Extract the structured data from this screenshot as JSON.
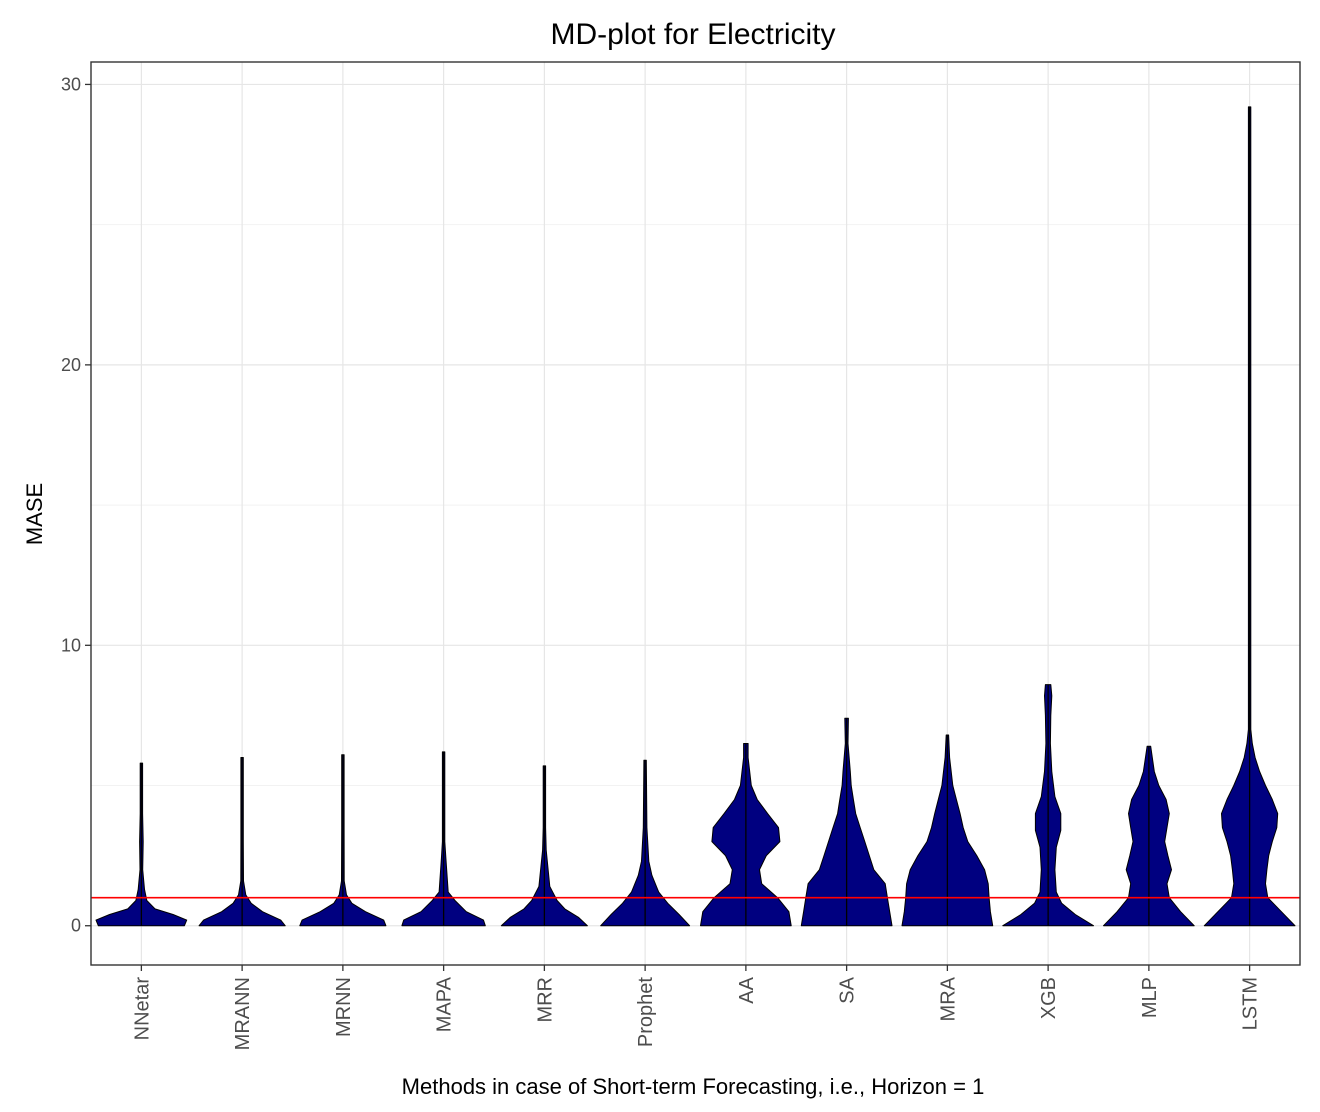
{
  "chart_data": {
    "type": "violin",
    "title": "MD-plot for Electricity",
    "xlabel": "Methods in case of Short-term Forecasting, i.e., Horizon = 1",
    "ylabel": "MASE",
    "ylim": [
      -1.4,
      30.8
    ],
    "yticks": [
      0,
      10,
      20,
      30
    ],
    "reference_line": {
      "y": 1,
      "color": "#ff0000"
    },
    "fill_color": "#000080",
    "grid": true,
    "categories": [
      "NNetar",
      "MRANN",
      "MRNN",
      "MAPA",
      "MRR",
      "Prophet",
      "AA",
      "SA",
      "MRA",
      "XGB",
      "MLP",
      "LSTM"
    ],
    "series": [
      {
        "name": "NNetar",
        "max": 5.8,
        "profile": [
          [
            0,
            0.95
          ],
          [
            0.2,
            1.0
          ],
          [
            0.4,
            0.7
          ],
          [
            0.6,
            0.3
          ],
          [
            0.9,
            0.12
          ],
          [
            1.3,
            0.07
          ],
          [
            2,
            0.03
          ],
          [
            3,
            0.04
          ],
          [
            4,
            0.01
          ],
          [
            5.8,
            0.01
          ]
        ]
      },
      {
        "name": "MRANN",
        "max": 6.0,
        "profile": [
          [
            0,
            0.95
          ],
          [
            0.2,
            0.85
          ],
          [
            0.5,
            0.45
          ],
          [
            0.8,
            0.2
          ],
          [
            1.1,
            0.08
          ],
          [
            1.6,
            0.03
          ],
          [
            3,
            0.02
          ],
          [
            5,
            0.02
          ],
          [
            6,
            0.01
          ]
        ]
      },
      {
        "name": "MRNN",
        "max": 6.1,
        "profile": [
          [
            0,
            0.95
          ],
          [
            0.2,
            0.9
          ],
          [
            0.5,
            0.5
          ],
          [
            0.8,
            0.2
          ],
          [
            1.1,
            0.08
          ],
          [
            1.6,
            0.03
          ],
          [
            3.5,
            0.02
          ],
          [
            6.1,
            0.01
          ]
        ]
      },
      {
        "name": "MAPA",
        "max": 6.2,
        "profile": [
          [
            0,
            0.92
          ],
          [
            0.2,
            0.88
          ],
          [
            0.5,
            0.5
          ],
          [
            0.9,
            0.25
          ],
          [
            1.2,
            0.1
          ],
          [
            2.4,
            0.05
          ],
          [
            3,
            0.02
          ],
          [
            6.2,
            0.01
          ]
        ]
      },
      {
        "name": "MRR",
        "max": 5.7,
        "profile": [
          [
            0,
            0.95
          ],
          [
            0.3,
            0.75
          ],
          [
            0.6,
            0.45
          ],
          [
            0.9,
            0.28
          ],
          [
            1.4,
            0.12
          ],
          [
            2.7,
            0.04
          ],
          [
            3.5,
            0.02
          ],
          [
            5.7,
            0.01
          ]
        ]
      },
      {
        "name": "Prophet",
        "max": 5.9,
        "profile": [
          [
            0,
            0.98
          ],
          [
            0.4,
            0.75
          ],
          [
            0.8,
            0.5
          ],
          [
            1.2,
            0.3
          ],
          [
            1.8,
            0.15
          ],
          [
            2.3,
            0.08
          ],
          [
            3.5,
            0.04
          ],
          [
            5.9,
            0.02
          ]
        ]
      },
      {
        "name": "AA",
        "max": 6.5,
        "profile": [
          [
            0,
            1.0
          ],
          [
            0.5,
            0.95
          ],
          [
            1.0,
            0.7
          ],
          [
            1.5,
            0.35
          ],
          [
            2.0,
            0.3
          ],
          [
            2.5,
            0.45
          ],
          [
            3.0,
            0.75
          ],
          [
            3.5,
            0.72
          ],
          [
            4.0,
            0.48
          ],
          [
            4.5,
            0.25
          ],
          [
            5.0,
            0.12
          ],
          [
            6.0,
            0.05
          ],
          [
            6.5,
            0.05
          ]
        ]
      },
      {
        "name": "SA",
        "max": 7.4,
        "profile": [
          [
            0,
            1.0
          ],
          [
            0.5,
            0.95
          ],
          [
            1.0,
            0.9
          ],
          [
            1.5,
            0.85
          ],
          [
            2.0,
            0.6
          ],
          [
            2.5,
            0.5
          ],
          [
            3.0,
            0.4
          ],
          [
            3.5,
            0.3
          ],
          [
            4.0,
            0.2
          ],
          [
            4.5,
            0.15
          ],
          [
            5.0,
            0.1
          ],
          [
            5.5,
            0.08
          ],
          [
            6.5,
            0.03
          ],
          [
            7.4,
            0.04
          ]
        ]
      },
      {
        "name": "MRA",
        "max": 6.8,
        "profile": [
          [
            0,
            1.0
          ],
          [
            0.5,
            0.95
          ],
          [
            1.0,
            0.92
          ],
          [
            1.5,
            0.9
          ],
          [
            2.0,
            0.82
          ],
          [
            2.5,
            0.65
          ],
          [
            3.0,
            0.45
          ],
          [
            3.5,
            0.35
          ],
          [
            4.0,
            0.28
          ],
          [
            4.5,
            0.2
          ],
          [
            5.0,
            0.12
          ],
          [
            6.0,
            0.05
          ],
          [
            6.8,
            0.02
          ]
        ]
      },
      {
        "name": "XGB",
        "max": 8.6,
        "profile": [
          [
            0,
            1.0
          ],
          [
            0.4,
            0.6
          ],
          [
            0.8,
            0.3
          ],
          [
            1.2,
            0.18
          ],
          [
            2.0,
            0.15
          ],
          [
            2.8,
            0.18
          ],
          [
            3.4,
            0.28
          ],
          [
            4.0,
            0.28
          ],
          [
            4.6,
            0.15
          ],
          [
            5.5,
            0.08
          ],
          [
            6.5,
            0.05
          ],
          [
            7.5,
            0.06
          ],
          [
            8.2,
            0.08
          ],
          [
            8.6,
            0.06
          ]
        ]
      },
      {
        "name": "MLP",
        "max": 6.4,
        "profile": [
          [
            0,
            1.0
          ],
          [
            0.5,
            0.7
          ],
          [
            1.0,
            0.45
          ],
          [
            1.5,
            0.4
          ],
          [
            2.0,
            0.5
          ],
          [
            2.5,
            0.42
          ],
          [
            3.0,
            0.35
          ],
          [
            3.5,
            0.4
          ],
          [
            4.0,
            0.45
          ],
          [
            4.5,
            0.38
          ],
          [
            5.0,
            0.22
          ],
          [
            5.5,
            0.12
          ],
          [
            6.4,
            0.04
          ]
        ]
      },
      {
        "name": "LSTM",
        "max": 29.2,
        "profile": [
          [
            0,
            1.0
          ],
          [
            0.5,
            0.7
          ],
          [
            1.0,
            0.4
          ],
          [
            1.5,
            0.35
          ],
          [
            2.0,
            0.38
          ],
          [
            2.5,
            0.42
          ],
          [
            3.0,
            0.5
          ],
          [
            3.5,
            0.6
          ],
          [
            4.0,
            0.62
          ],
          [
            4.5,
            0.5
          ],
          [
            5.0,
            0.35
          ],
          [
            5.5,
            0.22
          ],
          [
            6.0,
            0.12
          ],
          [
            6.5,
            0.06
          ],
          [
            7.0,
            0.02
          ],
          [
            29.2,
            0.004
          ]
        ]
      }
    ]
  }
}
